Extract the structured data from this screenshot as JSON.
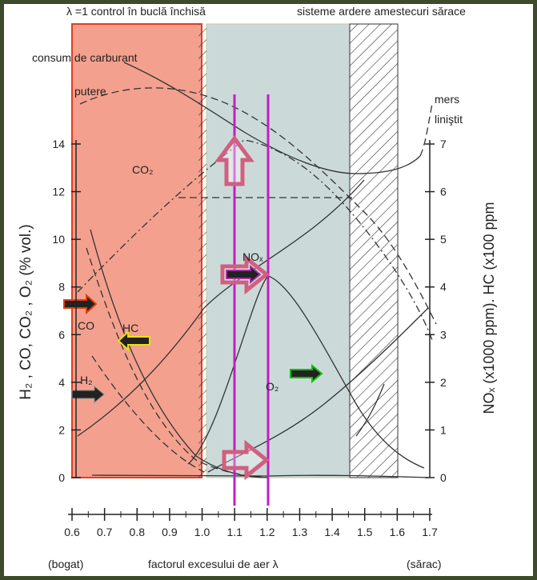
{
  "header": {
    "left": "λ =1 control în buclă închisă",
    "right": "sisteme ardere amestecuri sărace"
  },
  "labels": {
    "fuel": "consum de carburant",
    "power": "putere",
    "smooth_1": "mers",
    "smooth_2": "liniştit",
    "co2": "CO₂",
    "nox": "NOₓ",
    "co": "CO",
    "hc": "HC",
    "h2": "H₂",
    "o2": "O₂"
  },
  "axes": {
    "left_title": "H₂ , CO, CO₂ , O₂ (% vol.)",
    "right_title": "NOₓ (x1000 ppm). HC (x100 ppm",
    "left_ticks": [
      "0",
      "2",
      "4",
      "6",
      "8",
      "10",
      "12",
      "14"
    ],
    "right_ticks": [
      "0",
      "1",
      "2",
      "3",
      "4",
      "5",
      "6",
      "7"
    ],
    "x_ticks": [
      "0.6",
      "0.7",
      "0.8",
      "0.9",
      "1.0",
      "1.1",
      "1.2",
      "1.3",
      "1.4",
      "1.5",
      "1.6",
      "1.7"
    ]
  },
  "footer": {
    "rich": "(bogat)",
    "x_title": "factorul excesului de aer λ",
    "lean": "(sărac)"
  }
}
